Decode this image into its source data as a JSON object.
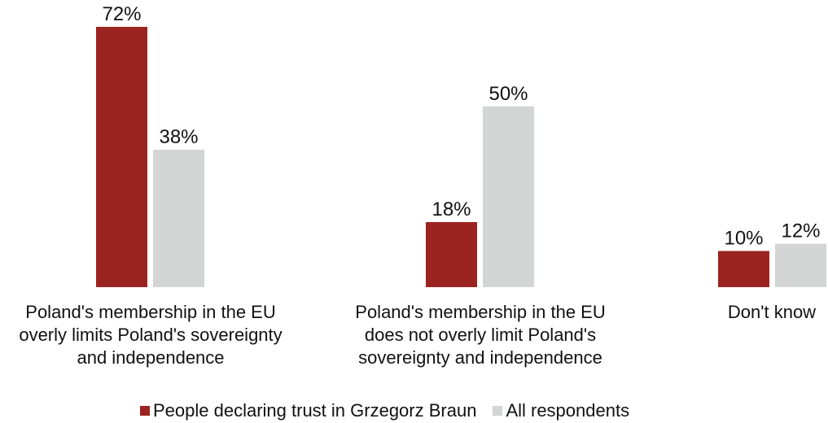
{
  "chart_data": {
    "type": "bar",
    "categories": [
      "Poland's membership in the EU overly limits Poland's sovereignty and independence",
      "Poland's membership in the EU does not overly limit Poland's sovereignty and independence",
      "Don't know"
    ],
    "category_lines": [
      [
        "Poland's membership in the EU",
        "overly limits Poland's sovereignty",
        "and independence"
      ],
      [
        "Poland's membership in the EU",
        "does not overly limit Poland's",
        "sovereignty and independence"
      ],
      [
        "Don't know"
      ]
    ],
    "series": [
      {
        "name": "People declaring trust in Grzegorz Braun",
        "values": [
          72,
          18,
          10
        ],
        "labels": [
          "72%",
          "18%",
          "10%"
        ],
        "color": "#9c2420"
      },
      {
        "name": "All respondents",
        "values": [
          38,
          50,
          12
        ],
        "labels": [
          "38%",
          "50%",
          "12%"
        ],
        "color": "#d3d4d4"
      }
    ],
    "ylim": [
      0,
      72
    ],
    "grid": false,
    "legend": "bottom"
  }
}
